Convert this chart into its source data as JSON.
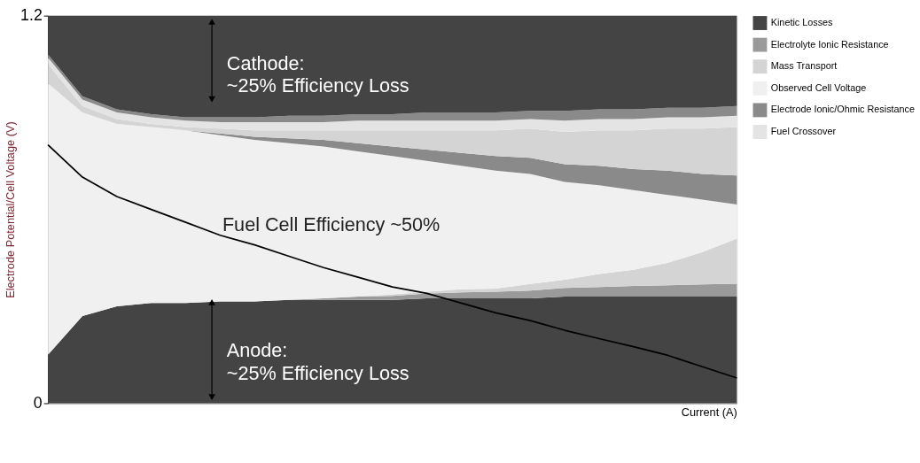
{
  "chart_data": {
    "type": "area",
    "stacked": true,
    "xlabel": "Current (A)",
    "ylabel": "Electrode Potential/Cell Voltage (V)",
    "categories": [
      null,
      null,
      null,
      null,
      null,
      null,
      null,
      null,
      null,
      null,
      null,
      null,
      null,
      null,
      null,
      null,
      null,
      null,
      null,
      null,
      null
    ],
    "ylim": [
      0,
      1.2
    ],
    "yticks": [
      0,
      1.2
    ],
    "grid": false,
    "legend": "right",
    "series": [
      {
        "name": "Kinetic Losses",
        "color": "#444444",
        "values": [
          0.15,
          0.27,
          0.3,
          0.31,
          0.31,
          0.315,
          0.315,
          0.32,
          0.32,
          0.32,
          0.32,
          0.325,
          0.325,
          0.325,
          0.325,
          0.33,
          0.33,
          0.33,
          0.33,
          0.33,
          0.33
        ]
      },
      {
        "name": "Electrolyte Ionic Resistance",
        "color": "#9a9a9a",
        "values": [
          0,
          0,
          0,
          0,
          0,
          0,
          0,
          0,
          0.005,
          0.01,
          0.012,
          0.015,
          0.018,
          0.02,
          0.024,
          0.027,
          0.03,
          0.033,
          0.035,
          0.038,
          0.04
        ]
      },
      {
        "name": "Mass Transport",
        "color": "#d4d4d4",
        "values": [
          0,
          0,
          0,
          0,
          0,
          0,
          0,
          0,
          0,
          0,
          0.005,
          0.005,
          0.01,
          0.01,
          0.02,
          0.025,
          0.04,
          0.05,
          0.07,
          0.1,
          0.14
        ]
      },
      {
        "name": "Observed Cell Voltage",
        "color": "#f0f0f0",
        "values": [
          0.84,
          0.63,
          0.565,
          0.545,
          0.535,
          0.515,
          0.5,
          0.485,
          0.47,
          0.45,
          0.428,
          0.405,
          0.382,
          0.365,
          0.341,
          0.303,
          0.275,
          0.247,
          0.21,
          0.162,
          0.105
        ]
      },
      {
        "name": "Electrode Ionic/Ohmic Resistance",
        "color": "#8a8a8a",
        "values": [
          0,
          0,
          0,
          0,
          0,
          0.005,
          0.01,
          0.015,
          0.02,
          0.025,
          0.03,
          0.035,
          0.04,
          0.045,
          0.05,
          0.055,
          0.06,
          0.065,
          0.075,
          0.08,
          0.09
        ]
      },
      {
        "color": "#d4d4d4",
        "values": [
          0.06,
          0.02,
          0.015,
          0.01,
          0.01,
          0.015,
          0.02,
          0.025,
          0.03,
          0.04,
          0.05,
          0.06,
          0.07,
          0.08,
          0.09,
          0.1,
          0.11,
          0.12,
          0.13,
          0.14,
          0.15
        ]
      },
      {
        "name": "Fuel Crossover",
        "color": "#e4e4e4",
        "values": [
          0.02,
          0.02,
          0.02,
          0.02,
          0.02,
          0.02,
          0.025,
          0.025,
          0.025,
          0.03,
          0.03,
          0.03,
          0.03,
          0.03,
          0.03,
          0.035,
          0.035,
          0.035,
          0.035,
          0.035,
          0.035
        ]
      },
      {
        "color": "#8a8a8a",
        "values": [
          0.01,
          0.01,
          0.01,
          0.01,
          0.01,
          0.015,
          0.015,
          0.02,
          0.02,
          0.02,
          0.02,
          0.025,
          0.025,
          0.025,
          0.025,
          0.03,
          0.03,
          0.03,
          0.03,
          0.03,
          0.03
        ]
      },
      {
        "color": "#444444",
        "values": [
          0.12,
          0.25,
          0.29,
          0.305,
          0.315,
          0.315,
          0.315,
          0.31,
          0.31,
          0.305,
          0.305,
          0.3,
          0.3,
          0.3,
          0.295,
          0.295,
          0.29,
          0.29,
          0.285,
          0.285,
          0.28
        ]
      },
      {
        "type": "line",
        "color": "#000000",
        "values": [
          0.8,
          0.7,
          0.64,
          0.6,
          0.56,
          0.52,
          0.49,
          0.455,
          0.42,
          0.39,
          0.36,
          0.34,
          0.31,
          0.28,
          0.256,
          0.226,
          0.2,
          0.175,
          0.148,
          0.113,
          0.078
        ]
      }
    ],
    "annotations": [
      "Cathode:\n~25% Efficiency Loss",
      "Fuel Cell Efficiency ~50%",
      "Anode:\n~25% Efficiency Loss"
    ]
  }
}
